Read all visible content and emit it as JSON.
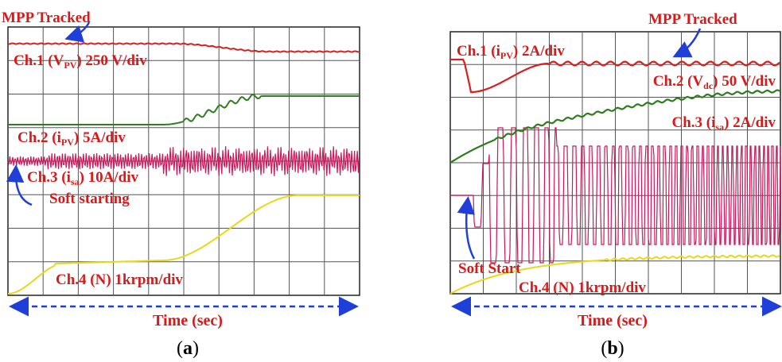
{
  "chart_data": [
    {
      "type": "line",
      "panel_label": "a",
      "xlabel": "Time (sec)",
      "grid": true,
      "grid_divisions": [
        10,
        8
      ],
      "annotations": {
        "mpp": "MPP Tracked",
        "soft": "Soft starting"
      },
      "series": [
        {
          "channel": "Ch.1 (",
          "var": "V",
          "sub": "PV",
          "scale": ") 250 V/div",
          "color": "#d42020"
        },
        {
          "channel": "Ch.2 (",
          "var": "i",
          "sub": "PV",
          "scale": ") 5A/div",
          "color": "#2e7d1f"
        },
        {
          "channel": "Ch.3 (",
          "var": "i",
          "sub": "sa",
          "scale": ") 10A/div",
          "color": "#c8195c"
        },
        {
          "channel": "Ch.4 (N) 1krpm/div",
          "var": "",
          "sub": "",
          "scale": "",
          "color": "#e0d21c"
        }
      ]
    },
    {
      "type": "line",
      "panel_label": "b",
      "xlabel": "Time (sec)",
      "grid": true,
      "grid_divisions": [
        10,
        8
      ],
      "annotations": {
        "mpp": "MPP Tracked",
        "soft": "Soft Start"
      },
      "series": [
        {
          "channel": "Ch.1 (",
          "var": "i",
          "sub": "PV",
          "scale": ") 2A/div",
          "color": "#d42020"
        },
        {
          "channel": "Ch.2 (",
          "var": "V",
          "sub": "dc",
          "scale": ") 50 V/div",
          "color": "#2e7d1f"
        },
        {
          "channel": "Ch.3 (",
          "var": "i",
          "sub": "sa",
          "scale": ") 2A/div",
          "color": "#c8195c"
        },
        {
          "channel": "Ch.4 (N) 1krpm/div",
          "var": "",
          "sub": "",
          "scale": "",
          "color": "#e0d21c"
        }
      ]
    }
  ],
  "captions": [
    "(",
    "a",
    ")",
    "(",
    "b",
    ")"
  ]
}
